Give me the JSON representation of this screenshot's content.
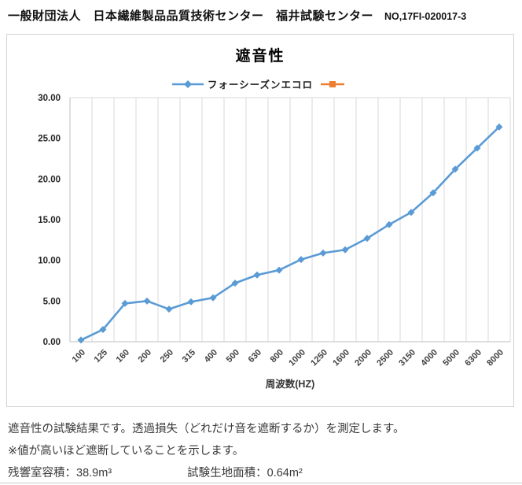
{
  "header": {
    "organization": "一般財団法人　日本繊維製品品質技術センター　福井試験センター",
    "report_no": "NO,17FI-020017-3"
  },
  "chart": {
    "title": "遮音性",
    "xlabel": "周波数(HZ)",
    "legend": [
      {
        "label": "フォーシーズンエコロ",
        "color": "#5B9BD5",
        "marker": "diamond"
      },
      {
        "label": "",
        "color": "#ED7D31",
        "marker": "square"
      }
    ]
  },
  "chart_data": {
    "type": "line",
    "title": "遮音性",
    "xlabel": "周波数(HZ)",
    "ylabel": "",
    "categories": [
      "100",
      "125",
      "160",
      "200",
      "250",
      "315",
      "400",
      "500",
      "630",
      "800",
      "1000",
      "1250",
      "1600",
      "2000",
      "2500",
      "3150",
      "4000",
      "5000",
      "6300",
      "8000"
    ],
    "series": [
      {
        "name": "フォーシーズンエコロ",
        "color": "#5B9BD5",
        "marker": "diamond",
        "values": [
          0.2,
          1.5,
          4.7,
          5.0,
          4.0,
          4.9,
          5.4,
          7.2,
          8.2,
          8.8,
          10.1,
          10.9,
          11.3,
          12.7,
          14.4,
          15.9,
          18.3,
          21.2,
          23.8,
          26.4
        ]
      }
    ],
    "ylim": [
      0,
      30
    ],
    "ytick_step": 5,
    "ytick_format": "0.00",
    "grid": "vertical-only",
    "grid_color": "#d9d9d9",
    "axis_color": "#bfbfbf",
    "tick_label_color": "#404040",
    "legend_position": "top"
  },
  "notes": {
    "line1": "遮音性の試験結果です。透過損失（どれだけ音を遮断するか）を測定します。",
    "line2": "※値が高いほど遮断していることを示します。",
    "volume_label": "残響室容積：38.9m³",
    "area_label": "試験生地面積：0.64m²"
  }
}
